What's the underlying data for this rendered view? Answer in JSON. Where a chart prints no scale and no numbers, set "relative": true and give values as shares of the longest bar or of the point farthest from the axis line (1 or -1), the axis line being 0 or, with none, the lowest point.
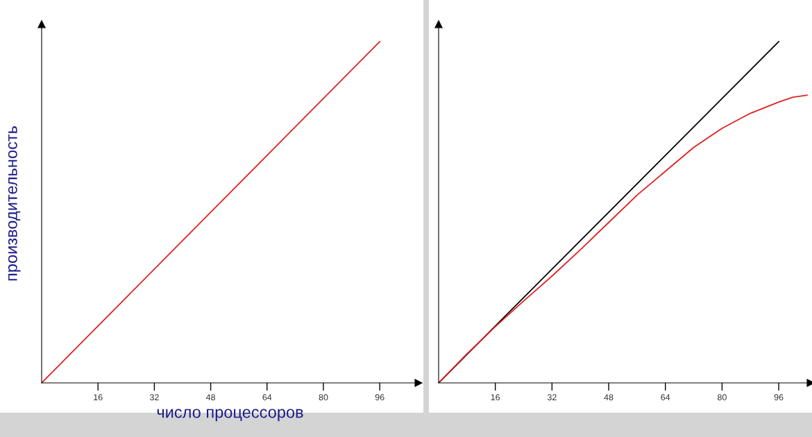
{
  "chart_data": [
    {
      "type": "line",
      "relative": true,
      "xlabel": "число процессоров",
      "ylabel": "производительность",
      "xlim": [
        0,
        107
      ],
      "xticks": [
        16,
        32,
        48,
        64,
        80,
        96
      ],
      "tick_labels": "x",
      "grid": false,
      "series": [
        {
          "color": "#e02020",
          "x": [
            0,
            96
          ],
          "values": [
            0,
            1
          ]
        }
      ]
    },
    {
      "type": "line",
      "relative": true,
      "xlim": [
        0,
        105
      ],
      "xticks": [
        16,
        32,
        48,
        64,
        80,
        96
      ],
      "tick_labels": "x",
      "grid": false,
      "series": [
        {
          "color": "#000000",
          "x": [
            0,
            96
          ],
          "values": [
            0,
            1
          ]
        },
        {
          "color": "#e02020",
          "x": [
            0,
            8,
            16,
            24,
            32,
            40,
            48,
            56,
            64,
            72,
            80,
            88,
            96,
            100,
            104
          ],
          "values": [
            0,
            0.085,
            0.165,
            0.24,
            0.313,
            0.39,
            0.47,
            0.55,
            0.62,
            0.69,
            0.746,
            0.79,
            0.823,
            0.837,
            0.843
          ]
        }
      ]
    }
  ]
}
